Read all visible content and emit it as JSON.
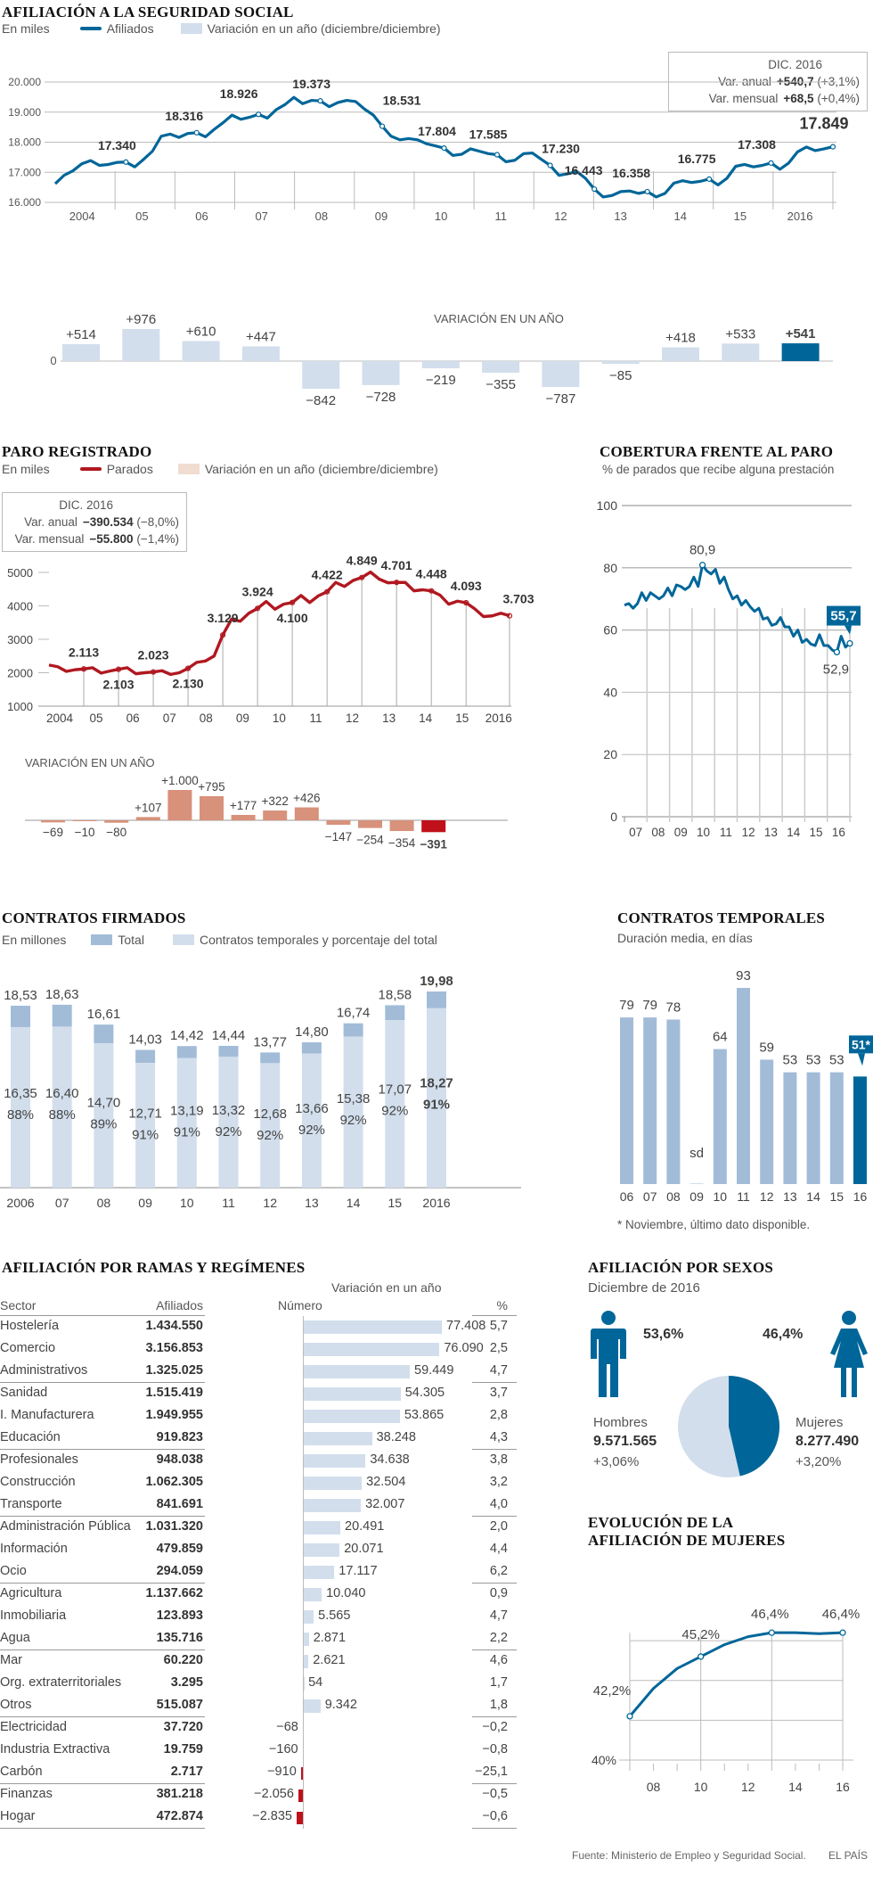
{
  "colors": {
    "blue": "#006699",
    "lightblue": "#d2deec",
    "midblue": "#a2bcd8",
    "red": "#c0101a",
    "salmon": "#d8917a",
    "salmon_light": "#f0dcd0"
  },
  "afiliacion": {
    "title": "AFILIACIÓN A LA SEGURIDAD SOCIAL",
    "units": "En miles",
    "legend_line": "Afiliados",
    "legend_box": "Variación en un año (diciembre/diciembre)",
    "infobox": {
      "header": "DIC. 2016",
      "anual_label": "Var. anual",
      "anual_value": "+540,7",
      "anual_pct": "(+3,1%)",
      "mensual_label": "Var. mensual",
      "mensual_value": "+68,5",
      "mensual_pct": "(+0,4%)"
    },
    "var_title": "VARIACIÓN EN UN AÑO",
    "zero_label": "0"
  },
  "paro": {
    "title": "PARO REGISTRADO",
    "units": "En miles",
    "legend_line": "Parados",
    "legend_box": "Variación en un año (diciembre/diciembre)",
    "infobox": {
      "header": "DIC. 2016",
      "anual_label": "Var. anual",
      "anual_value": "−390.534",
      "anual_pct": "(−8,0%)",
      "mensual_label": "Var. mensual",
      "mensual_value": "−55.800",
      "mensual_pct": "(−1,4%)"
    },
    "var_title": "VARIACIÓN EN UN AÑO"
  },
  "cobertura": {
    "title": "COBERTURA FRENTE AL PARO",
    "subtitle": "% de parados que recibe alguna prestación"
  },
  "contratos": {
    "title": "CONTRATOS FIRMADOS",
    "units": "En millones",
    "legend_total": "Total",
    "legend_temp": "Contratos temporales y porcentaje del total"
  },
  "temporales": {
    "title": "CONTRATOS TEMPORALES",
    "subtitle": "Duración media, en días",
    "footnote": "* Noviembre, último dato disponible."
  },
  "ramas": {
    "title": "AFILIACIÓN POR RAMAS Y REGÍMENES",
    "group_header": "Variación en un año",
    "col_sector": "Sector",
    "col_afiliados": "Afiliados",
    "col_numero": "Número",
    "col_pct": "%",
    "rows": [
      {
        "sector": "Hostelería",
        "afiliados": "1.434.550",
        "numero": "77.408",
        "value": 77408,
        "pct": "5,7"
      },
      {
        "sector": "Comercio",
        "afiliados": "3.156.853",
        "numero": "76.090",
        "value": 76090,
        "pct": "2,5"
      },
      {
        "sector": "Administrativos",
        "afiliados": "1.325.025",
        "numero": "59.449",
        "value": 59449,
        "pct": "4,7"
      },
      {
        "sector": "Sanidad",
        "afiliados": "1.515.419",
        "numero": "54.305",
        "value": 54305,
        "pct": "3,7"
      },
      {
        "sector": "I. Manufacturera",
        "afiliados": "1.949.955",
        "numero": "53.865",
        "value": 53865,
        "pct": "2,8"
      },
      {
        "sector": "Educación",
        "afiliados": "919.823",
        "numero": "38.248",
        "value": 38248,
        "pct": "4,3"
      },
      {
        "sector": "Profesionales",
        "afiliados": "948.038",
        "numero": "34.638",
        "value": 34638,
        "pct": "3,8"
      },
      {
        "sector": "Construcción",
        "afiliados": "1.062.305",
        "numero": "32.504",
        "value": 32504,
        "pct": "3,2"
      },
      {
        "sector": "Transporte",
        "afiliados": "841.691",
        "numero": "32.007",
        "value": 32007,
        "pct": "4,0"
      },
      {
        "sector": "Administración Pública",
        "afiliados": "1.031.320",
        "numero": "20.491",
        "value": 20491,
        "pct": "2,0"
      },
      {
        "sector": "Información",
        "afiliados": "479.859",
        "numero": "20.071",
        "value": 20071,
        "pct": "4,4"
      },
      {
        "sector": "Ocio",
        "afiliados": "294.059",
        "numero": "17.117",
        "value": 17117,
        "pct": "6,2"
      },
      {
        "sector": "Agricultura",
        "afiliados": "1.137.662",
        "numero": "10.040",
        "value": 10040,
        "pct": "0,9"
      },
      {
        "sector": "Inmobiliaria",
        "afiliados": "123.893",
        "numero": "5.565",
        "value": 5565,
        "pct": "4,7"
      },
      {
        "sector": "Agua",
        "afiliados": "135.716",
        "numero": "2.871",
        "value": 2871,
        "pct": "2,2"
      },
      {
        "sector": "Mar",
        "afiliados": "60.220",
        "numero": "2.621",
        "value": 2621,
        "pct": "4,6"
      },
      {
        "sector": "Org. extraterritoriales",
        "afiliados": "3.295",
        "numero": "54",
        "value": 54,
        "pct": "1,7"
      },
      {
        "sector": "Otros",
        "afiliados": "515.087",
        "numero": "9.342",
        "value": 9342,
        "pct": "1,8"
      },
      {
        "sector": "Electricidad",
        "afiliados": "37.720",
        "numero": "−68",
        "value": -68,
        "pct": "−0,2"
      },
      {
        "sector": "Industria Extractiva",
        "afiliados": "19.759",
        "numero": "−160",
        "value": -160,
        "pct": "−0,8"
      },
      {
        "sector": "Carbón",
        "afiliados": "2.717",
        "numero": "−910",
        "value": -910,
        "pct": "−25,1"
      },
      {
        "sector": "Finanzas",
        "afiliados": "381.218",
        "numero": "−2.056",
        "value": -2056,
        "pct": "−0,5"
      },
      {
        "sector": "Hogar",
        "afiliados": "472.874",
        "numero": "−2.835",
        "value": -2835,
        "pct": "−0,6"
      }
    ],
    "separators_after": [
      2,
      5,
      8,
      11,
      14,
      17,
      20,
      22
    ]
  },
  "sexos": {
    "title": "AFILIACIÓN POR SEXOS",
    "subtitle": "Diciembre de 2016",
    "hombres": {
      "label": "Hombres",
      "pct": "53,6%",
      "value": "9.571.565",
      "var": "+3,06%",
      "share": 53.6
    },
    "mujeres": {
      "label": "Mujeres",
      "pct": "46,4%",
      "value": "8.277.490",
      "var": "+3,20%",
      "share": 46.4
    }
  },
  "evolucion": {
    "title_line1": "EVOLUCIÓN DE LA",
    "title_line2": "AFILIACIÓN DE MUJERES"
  },
  "footer": {
    "source": "Fuente: Ministerio de Empleo y Seguridad Social.",
    "brand": "EL PAÍS"
  },
  "chart_data": [
    {
      "id": "afiliados_line",
      "type": "line",
      "title": "AFILIACIÓN A LA SEGURIDAD SOCIAL",
      "ylabel": "En miles",
      "ylim": [
        16000,
        20000
      ],
      "yticks": [
        16000,
        17000,
        18000,
        19000,
        20000
      ],
      "ytick_labels": [
        "16.000",
        "17.000",
        "18.000",
        "19.000",
        "20.000"
      ],
      "xticks": [
        "2004",
        "05",
        "06",
        "07",
        "08",
        "09",
        "10",
        "11",
        "12",
        "13",
        "14",
        "15",
        "2016"
      ],
      "series": [
        {
          "name": "Afiliados",
          "values": [
            16620,
            16900,
            17050,
            17280,
            17390,
            17230,
            17260,
            17330,
            17340,
            17180,
            17430,
            17700,
            18200,
            18270,
            18160,
            18290,
            18316,
            18180,
            18430,
            18650,
            18900,
            18760,
            18830,
            18926,
            18800,
            19080,
            19250,
            19490,
            19280,
            19390,
            19373,
            19180,
            19320,
            19390,
            19350,
            19100,
            18900,
            18531,
            18200,
            18080,
            18120,
            18080,
            17950,
            17880,
            17804,
            17560,
            17600,
            17780,
            17700,
            17620,
            17585,
            17350,
            17400,
            17620,
            17640,
            17430,
            17230,
            16900,
            16950,
            17030,
            16800,
            16443,
            16180,
            16230,
            16360,
            16380,
            16300,
            16358,
            16180,
            16300,
            16640,
            16720,
            16660,
            16700,
            16775,
            16580,
            16800,
            17200,
            17260,
            17180,
            17230,
            17308,
            17100,
            17310,
            17680,
            17840,
            17720,
            17780,
            17849
          ]
        }
      ],
      "annotations": [
        {
          "label": "17.340",
          "year": "2004"
        },
        {
          "label": "18.316",
          "year": "05"
        },
        {
          "label": "18.926",
          "year": "06"
        },
        {
          "label": "19.373",
          "year": "07"
        },
        {
          "label": "18.531",
          "year": "08"
        },
        {
          "label": "17.804",
          "year": "09"
        },
        {
          "label": "17.585",
          "year": "10"
        },
        {
          "label": "17.230",
          "year": "11"
        },
        {
          "label": "16.443",
          "year": "12"
        },
        {
          "label": "16.358",
          "year": "13"
        },
        {
          "label": "16.775",
          "year": "14"
        },
        {
          "label": "17.308",
          "year": "15"
        },
        {
          "label": "17.849",
          "year": "2016"
        }
      ]
    },
    {
      "id": "afiliados_var",
      "type": "bar",
      "title": "VARIACIÓN EN UN AÑO",
      "categories": [
        "2004",
        "05",
        "06",
        "07",
        "08",
        "09",
        "10",
        "11",
        "12",
        "13",
        "14",
        "15",
        "2016"
      ],
      "values": [
        514,
        976,
        610,
        447,
        -842,
        -728,
        -219,
        -355,
        -787,
        -85,
        418,
        533,
        541
      ],
      "labels": [
        "+514",
        "+976",
        "+610",
        "+447",
        "−842",
        "−728",
        "−219",
        "−355",
        "−787",
        "−85",
        "+418",
        "+533",
        "+541"
      ],
      "highlight_index": 12
    },
    {
      "id": "parados_line",
      "type": "line",
      "title": "PARO REGISTRADO",
      "ylabel": "En miles",
      "ylim": [
        1000,
        5000
      ],
      "yticks": [
        1000,
        2000,
        3000,
        4000,
        5000
      ],
      "ytick_labels": [
        "1000",
        "2000",
        "3000",
        "4000",
        "5000"
      ],
      "xticks": [
        "2004",
        "05",
        "06",
        "07",
        "08",
        "09",
        "10",
        "11",
        "12",
        "13",
        "14",
        "15",
        "2016"
      ],
      "series": [
        {
          "name": "Parados",
          "values": [
            2230,
            2180,
            2040,
            2090,
            2113,
            2150,
            1990,
            2050,
            2103,
            2150,
            1970,
            2000,
            2023,
            2060,
            1950,
            2000,
            2130,
            2310,
            2350,
            2500,
            3129,
            3600,
            3540,
            3780,
            3924,
            4130,
            3900,
            4050,
            4100,
            4310,
            4100,
            4300,
            4422,
            4700,
            4580,
            4760,
            4849,
            5010,
            4800,
            4690,
            4701,
            4700,
            4450,
            4480,
            4448,
            4320,
            4050,
            4140,
            4093,
            3910,
            3680,
            3700,
            3780,
            3703
          ]
        }
      ],
      "annotations": [
        {
          "label": "2.113",
          "year": "2004"
        },
        {
          "label": "2.103",
          "year": "05"
        },
        {
          "label": "2.023",
          "year": "06"
        },
        {
          "label": "2.130",
          "year": "07"
        },
        {
          "label": "3.129",
          "year": "08"
        },
        {
          "label": "3.924",
          "year": "09"
        },
        {
          "label": "4.100",
          "year": "10"
        },
        {
          "label": "4.422",
          "year": "11"
        },
        {
          "label": "4.849",
          "year": "12"
        },
        {
          "label": "4.701",
          "year": "13"
        },
        {
          "label": "4.448",
          "year": "14"
        },
        {
          "label": "4.093",
          "year": "15"
        },
        {
          "label": "3.703",
          "year": "2016"
        }
      ]
    },
    {
      "id": "parados_var",
      "type": "bar",
      "title": "VARIACIÓN EN UN AÑO",
      "categories": [
        "2004",
        "05",
        "06",
        "07",
        "08",
        "09",
        "10",
        "11",
        "12",
        "13",
        "14",
        "15",
        "2016"
      ],
      "values": [
        -69,
        -10,
        -80,
        107,
        1000,
        795,
        177,
        322,
        426,
        -147,
        -254,
        -354,
        -391
      ],
      "labels": [
        "−69",
        "−10",
        "−80",
        "+107",
        "+1.000",
        "+795",
        "+177",
        "+322",
        "+426",
        "−147",
        "−254",
        "−354",
        "−391"
      ],
      "highlight_index": 12
    },
    {
      "id": "cobertura",
      "type": "line",
      "title": "COBERTURA FRENTE AL PARO",
      "ylabel": "% de parados que recibe alguna prestación",
      "ylim": [
        0,
        100
      ],
      "yticks": [
        0,
        20,
        40,
        60,
        80,
        100
      ],
      "ytick_labels": [
        "0",
        "20",
        "40",
        "60",
        "80",
        "100"
      ],
      "xticks": [
        "07",
        "08",
        "09",
        "10",
        "11",
        "12",
        "13",
        "14",
        "15",
        "16"
      ],
      "series": [
        {
          "name": "Cobertura",
          "values": [
            68,
            68.5,
            67,
            68.5,
            72,
            69.5,
            72,
            71,
            70,
            71,
            73.5,
            71,
            74.5,
            74,
            73,
            74,
            77,
            74,
            80.9,
            79,
            78,
            79.5,
            75,
            77,
            73,
            70,
            71,
            68,
            69.5,
            67.5,
            66,
            67,
            63.5,
            64,
            61.5,
            62,
            64,
            61,
            61,
            58,
            60,
            56,
            57,
            55.5,
            55,
            58.5,
            55,
            55,
            53.5,
            52.9,
            58,
            54.5,
            55.7
          ]
        }
      ],
      "annotations": [
        {
          "label": "80,9",
          "kind": "max"
        },
        {
          "label": "52,9",
          "kind": "min"
        },
        {
          "label": "55,7",
          "kind": "last"
        }
      ]
    },
    {
      "id": "contratos",
      "type": "bar",
      "title": "CONTRATOS FIRMADOS",
      "ylabel": "En millones",
      "categories": [
        "2006",
        "07",
        "08",
        "09",
        "10",
        "11",
        "12",
        "13",
        "14",
        "15",
        "2016"
      ],
      "series": [
        {
          "name": "Total",
          "values": [
            18.53,
            18.63,
            16.61,
            14.03,
            14.42,
            14.44,
            13.77,
            14.8,
            16.74,
            18.58,
            19.98
          ],
          "labels": [
            "18,53",
            "18,63",
            "16,61",
            "14,03",
            "14,42",
            "14,44",
            "13,77",
            "14,80",
            "16,74",
            "18,58",
            "19,98"
          ]
        },
        {
          "name": "Contratos temporales",
          "values": [
            16.35,
            16.4,
            14.7,
            12.71,
            13.19,
            13.32,
            12.68,
            13.66,
            15.38,
            17.07,
            18.27
          ],
          "labels": [
            "16,35",
            "16,40",
            "14,70",
            "12,71",
            "13,19",
            "13,32",
            "12,68",
            "13,66",
            "15,38",
            "17,07",
            "18,27"
          ]
        }
      ],
      "percentages": [
        "88%",
        "88%",
        "89%",
        "91%",
        "91%",
        "92%",
        "92%",
        "92%",
        "92%",
        "92%",
        "91%"
      ]
    },
    {
      "id": "temporales",
      "type": "bar",
      "title": "CONTRATOS TEMPORALES",
      "ylabel": "Duración media, en días",
      "categories": [
        "06",
        "07",
        "08",
        "09",
        "10",
        "11",
        "12",
        "13",
        "14",
        "15",
        "16"
      ],
      "values": [
        79,
        79,
        78,
        null,
        64,
        93,
        59,
        53,
        53,
        53,
        51
      ],
      "labels": [
        "79",
        "79",
        "78",
        "sd",
        "64",
        "93",
        "59",
        "53",
        "53",
        "53",
        "51*"
      ],
      "highlight_index": 10
    },
    {
      "id": "ramas",
      "type": "bar",
      "title": "AFILIACIÓN POR RAMAS Y REGÍMENES",
      "note": "Horizontal bars of 'Número' column from ramas.rows"
    },
    {
      "id": "sexos",
      "type": "pie",
      "title": "AFILIACIÓN POR SEXOS",
      "categories": [
        "Hombres",
        "Mujeres"
      ],
      "values": [
        53.6,
        46.4
      ]
    },
    {
      "id": "evolucion",
      "type": "line",
      "title": "EVOLUCIÓN DE LA AFILIACIÓN DE MUJERES",
      "ylim": [
        40,
        47
      ],
      "yticks": [
        40,
        42,
        44,
        46
      ],
      "ytick_labels": [
        "40%"
      ],
      "xticks": [
        "08",
        "10",
        "12",
        "14",
        "16"
      ],
      "x": [
        2007,
        2008,
        2009,
        2010,
        2011,
        2012,
        2013,
        2014,
        2015,
        2016
      ],
      "series": [
        {
          "name": "Mujeres",
          "values": [
            42.2,
            43.6,
            44.6,
            45.2,
            45.8,
            46.2,
            46.4,
            46.4,
            46.35,
            46.4
          ]
        }
      ],
      "annotations": [
        {
          "label": "42,2%",
          "x": 2007
        },
        {
          "label": "45,2%",
          "x": 2010
        },
        {
          "label": "46,4%",
          "x": 2013
        },
        {
          "label": "46,4%",
          "x": 2016
        }
      ]
    }
  ]
}
